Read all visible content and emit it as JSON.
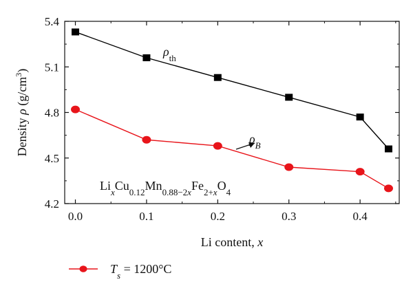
{
  "chart_data": {
    "type": "line",
    "xlabel": {
      "prefix": "Li content, ",
      "var": "x"
    },
    "ylabel": {
      "prefix": "Density ",
      "var": "ρ",
      "unit_open": " (g/cm",
      "unit_sup": "3",
      "unit_close": ")"
    },
    "xlim": [
      -0.015,
      0.455
    ],
    "ylim": [
      4.2,
      5.4
    ],
    "xticks": [
      0.0,
      0.1,
      0.2,
      0.3,
      0.4
    ],
    "xtick_labels": [
      "0.0",
      "0.1",
      "0.2",
      "0.3",
      "0.4"
    ],
    "yticks": [
      4.2,
      4.5,
      4.8,
      5.1,
      5.4
    ],
    "ytick_labels": [
      "4.2",
      "4.5",
      "4.8",
      "5.1",
      "5.4"
    ],
    "series": [
      {
        "name": "ρth",
        "marker": "square",
        "color": "#000000",
        "x": [
          0.0,
          0.1,
          0.2,
          0.3,
          0.4,
          0.44
        ],
        "y": [
          5.33,
          5.16,
          5.03,
          4.9,
          4.77,
          4.56
        ]
      },
      {
        "name": "ρB",
        "marker": "circle",
        "color": "#e8141a",
        "x": [
          0.0,
          0.1,
          0.2,
          0.3,
          0.4,
          0.44
        ],
        "y": [
          4.82,
          4.62,
          4.58,
          4.44,
          4.41,
          4.3
        ]
      }
    ],
    "annotations": {
      "rho_th": {
        "main": "ρ",
        "sub": "th"
      },
      "rho_b": {
        "main": "ρ",
        "sub": "B"
      },
      "formula": [
        {
          "t": "Li",
          "s": ""
        },
        {
          "t": "x",
          "s": "sub-i"
        },
        {
          "t": "Cu",
          "s": ""
        },
        {
          "t": "0.12",
          "s": "sub"
        },
        {
          "t": "Mn",
          "s": ""
        },
        {
          "t": "0.88−2",
          "s": "sub"
        },
        {
          "t": "x",
          "s": "sub-i"
        },
        {
          "t": "Fe",
          "s": ""
        },
        {
          "t": "2+",
          "s": "sub"
        },
        {
          "t": "x",
          "s": "sub-i"
        },
        {
          "t": "O",
          "s": ""
        },
        {
          "t": "4",
          "s": "sub"
        }
      ]
    },
    "legend": {
      "label_var": "T",
      "label_sub": "s",
      "label_rest": " = 1200°C",
      "color": "#e8141a"
    }
  }
}
